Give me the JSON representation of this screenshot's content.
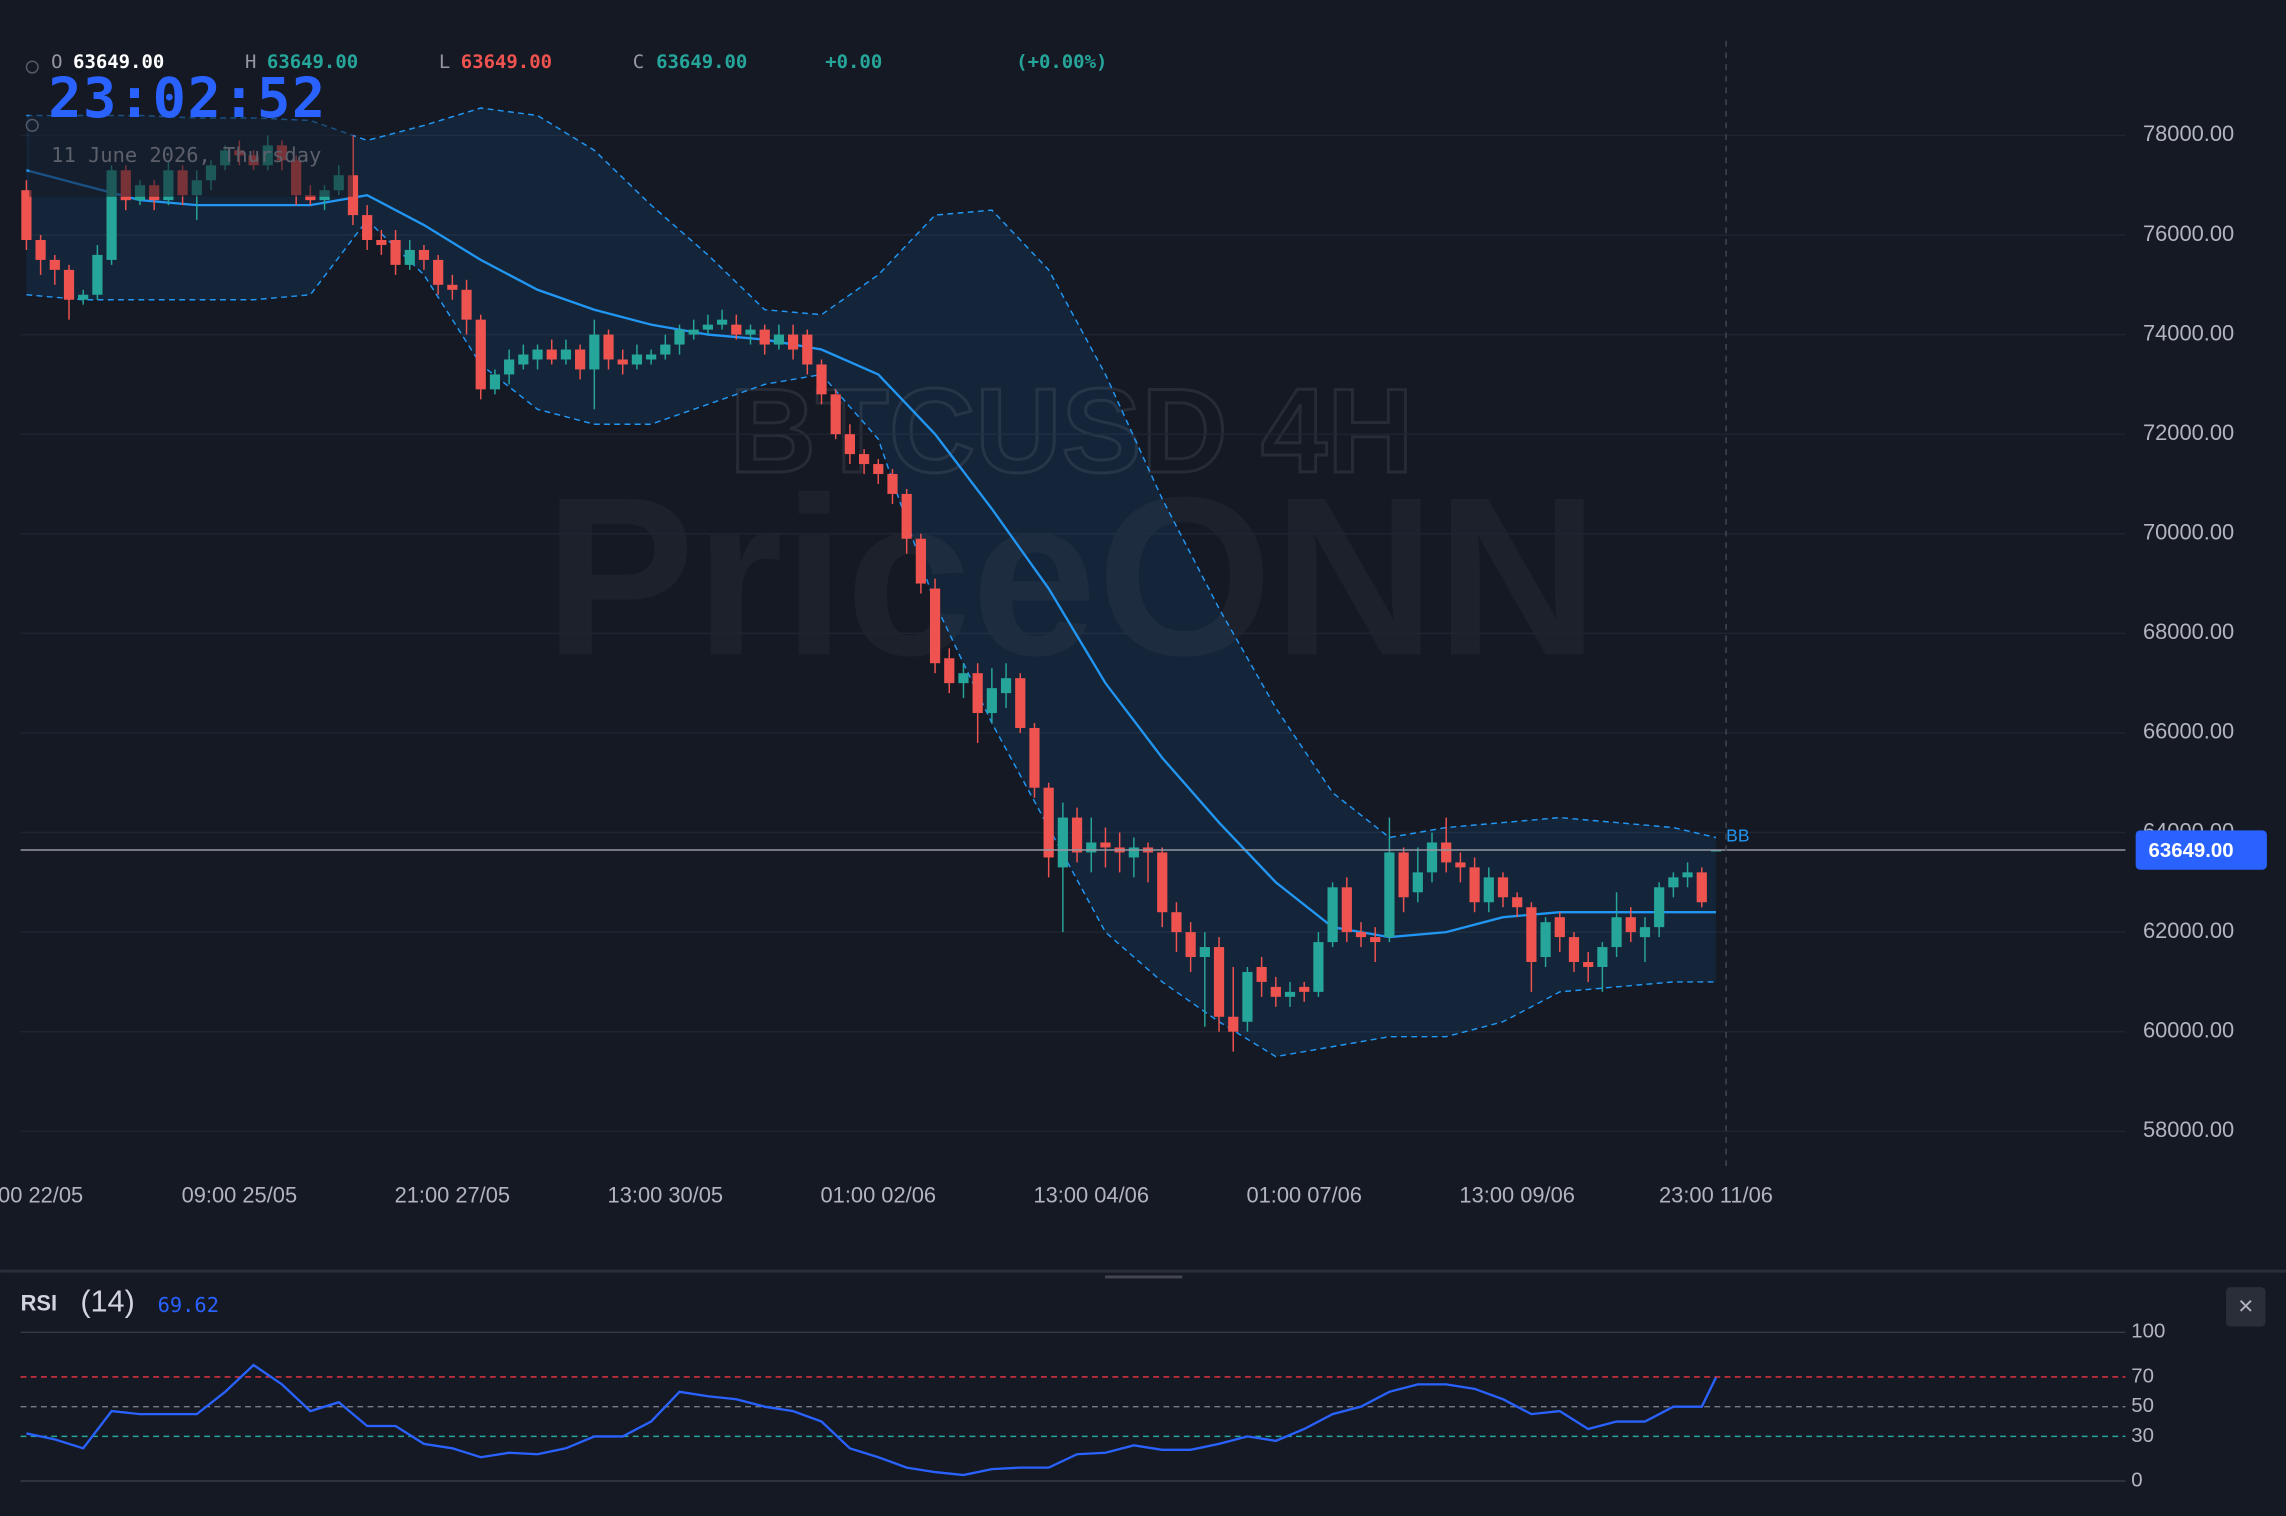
{
  "header": {
    "open_label": "O",
    "open": "63649.00",
    "high_label": "H",
    "high": "63649.00",
    "low_label": "L",
    "low": "63649.00",
    "close_label": "C",
    "close": "63649.00",
    "change": "+0.00",
    "change_pct": "(+0.00%)"
  },
  "clock": {
    "time": "23:02:52",
    "date": "11 June 2026, Thursday"
  },
  "watermark": {
    "symbol": "BTCUSD 4H",
    "brand": "PriceONN"
  },
  "close_button": "×",
  "chart_data": [
    {
      "type": "candlestick",
      "up_color": "#26a69a",
      "down_color": "#ef5350",
      "open": [
        76900,
        75900,
        75500,
        75300,
        74700,
        74800,
        75500,
        77300,
        76700,
        77000,
        76700,
        77300,
        76800,
        77100,
        77400,
        77700,
        77600,
        77400,
        77800,
        77500,
        76800,
        76700,
        76900,
        77200,
        76400,
        75900,
        75900,
        75400,
        75700,
        75500,
        75000,
        74900,
        74300,
        72900,
        73200,
        73400,
        73500,
        73700,
        73500,
        73700,
        73300,
        74000,
        73500,
        73400,
        73500,
        73600,
        73800,
        74000,
        74100,
        74200,
        74200,
        74000,
        74100,
        73800,
        74000,
        74000,
        73400,
        72800,
        72000,
        71600,
        71400,
        71200,
        70800,
        69900,
        68900,
        67500,
        67000,
        67200,
        66400,
        66800,
        67100,
        66100,
        64900,
        63300,
        64300,
        63600,
        63800,
        63700,
        63500,
        63700,
        63600,
        62400,
        62000,
        61500,
        61700,
        60300,
        60200,
        61300,
        60900,
        60700,
        60900,
        60800,
        61800,
        62900,
        62000,
        61900,
        61900,
        63600,
        62800,
        63200,
        63800,
        63400,
        63300,
        62600,
        63100,
        62700,
        62500,
        61500,
        62300,
        61900,
        61400,
        61300,
        61700,
        62300,
        61900,
        62100,
        62900,
        63100,
        63200,
        63649
      ],
      "high": [
        77100,
        76000,
        75600,
        75400,
        74900,
        75800,
        77400,
        77400,
        77100,
        77100,
        77500,
        77400,
        77300,
        77500,
        77800,
        77900,
        77700,
        78000,
        77900,
        77600,
        77000,
        77000,
        77400,
        78000,
        76600,
        76100,
        76100,
        75900,
        75800,
        75600,
        75200,
        75100,
        74400,
        73300,
        73700,
        73800,
        73800,
        73900,
        73900,
        73800,
        74300,
        74100,
        73700,
        73800,
        73700,
        74000,
        74200,
        74300,
        74400,
        74500,
        74400,
        74200,
        74200,
        74200,
        74200,
        74100,
        73500,
        72900,
        72200,
        71700,
        71500,
        71300,
        70900,
        70000,
        69100,
        67700,
        67400,
        67400,
        67300,
        67400,
        67200,
        66200,
        65000,
        64600,
        64500,
        64300,
        64100,
        64000,
        63900,
        63800,
        63700,
        62600,
        62200,
        62000,
        61900,
        61300,
        61300,
        61500,
        61100,
        61000,
        61000,
        62000,
        63000,
        63100,
        62200,
        62100,
        64300,
        63700,
        63700,
        64000,
        64300,
        63600,
        63500,
        63300,
        63200,
        62800,
        62600,
        62300,
        62400,
        62000,
        61600,
        61800,
        62800,
        62500,
        62300,
        63000,
        63200,
        63400,
        63300,
        63649
      ],
      "low": [
        75700,
        75200,
        75000,
        74300,
        74600,
        74700,
        75400,
        76500,
        76600,
        76500,
        76600,
        76600,
        76300,
        76900,
        77300,
        77400,
        77300,
        77300,
        77300,
        76600,
        76600,
        76500,
        76800,
        76200,
        75700,
        75600,
        75200,
        75300,
        75300,
        74800,
        74700,
        74000,
        72700,
        72800,
        73000,
        73300,
        73300,
        73400,
        73400,
        73100,
        72500,
        73300,
        73200,
        73300,
        73400,
        73500,
        73600,
        73900,
        74000,
        74100,
        73900,
        73800,
        73600,
        73700,
        73500,
        73200,
        72600,
        71900,
        71400,
        71200,
        71000,
        70600,
        69600,
        68800,
        67200,
        66800,
        66700,
        65800,
        66200,
        66500,
        66000,
        64700,
        63100,
        62000,
        63400,
        63200,
        63300,
        63200,
        63100,
        63000,
        62100,
        61600,
        61200,
        60100,
        60000,
        59600,
        60000,
        60700,
        60500,
        60500,
        60600,
        60700,
        61700,
        61800,
        61700,
        61400,
        61800,
        62400,
        62600,
        63000,
        63200,
        63000,
        62400,
        62400,
        62500,
        62300,
        60800,
        61300,
        61600,
        61200,
        61000,
        60800,
        61500,
        61800,
        61400,
        61900,
        62700,
        62900,
        62500,
        63649
      ],
      "close": [
        75900,
        75500,
        75300,
        74700,
        74800,
        75600,
        77300,
        76700,
        77000,
        76700,
        77300,
        76800,
        77100,
        77400,
        77700,
        77600,
        77400,
        77800,
        77500,
        76800,
        76700,
        76900,
        77200,
        76400,
        75900,
        75800,
        75400,
        75700,
        75500,
        75000,
        74900,
        74300,
        72900,
        73200,
        73500,
        73600,
        73700,
        73500,
        73700,
        73300,
        74000,
        73500,
        73400,
        73600,
        73600,
        73800,
        74100,
        74100,
        74200,
        74300,
        74000,
        74100,
        73800,
        74000,
        73700,
        73400,
        72800,
        72000,
        71600,
        71400,
        71200,
        70800,
        69900,
        69000,
        67400,
        67000,
        67200,
        66400,
        66900,
        67100,
        66100,
        64900,
        63500,
        64300,
        63600,
        63800,
        63700,
        63600,
        63700,
        63600,
        62400,
        62000,
        61500,
        61700,
        60300,
        60000,
        61200,
        61000,
        60700,
        60800,
        60800,
        61800,
        62900,
        62000,
        61900,
        61800,
        63600,
        62700,
        63200,
        63800,
        63400,
        63300,
        62600,
        63100,
        62700,
        62500,
        61400,
        62200,
        61900,
        61400,
        61300,
        61700,
        62300,
        62000,
        62100,
        62900,
        63100,
        63200,
        62600,
        63649
      ],
      "bollinger": {
        "label": "BB",
        "color": "#2196f3",
        "x": [
          0,
          4,
          8,
          12,
          16,
          20,
          24,
          28,
          32,
          36,
          40,
          44,
          48,
          52,
          56,
          60,
          64,
          68,
          72,
          76,
          80,
          84,
          88,
          92,
          96,
          100,
          104,
          108,
          112,
          116,
          119
        ],
        "upper": [
          78400,
          78400,
          78400,
          78350,
          78350,
          78300,
          77900,
          78200,
          78550,
          78400,
          77700,
          76600,
          75600,
          74500,
          74400,
          75200,
          76400,
          76500,
          75300,
          73200,
          70700,
          68500,
          66500,
          64800,
          63900,
          64100,
          64200,
          64300,
          64200,
          64100,
          63900
        ],
        "middle": [
          77300,
          77000,
          76700,
          76600,
          76600,
          76600,
          76800,
          76200,
          75500,
          74900,
          74500,
          74200,
          74000,
          73900,
          73700,
          73200,
          72000,
          70500,
          68900,
          67000,
          65500,
          64200,
          63000,
          62100,
          61900,
          62000,
          62300,
          62400,
          62400,
          62400,
          62400
        ],
        "lower": [
          74800,
          74700,
          74700,
          74700,
          74700,
          74800,
          76300,
          75200,
          73400,
          72500,
          72200,
          72200,
          72600,
          73000,
          73200,
          71900,
          68600,
          66200,
          64100,
          62000,
          61000,
          60200,
          59500,
          59700,
          59900,
          59900,
          60200,
          60800,
          60900,
          61000,
          61000
        ]
      },
      "last_price": {
        "value": 63649,
        "label": "63649.00"
      },
      "ylim": [
        57300,
        79900
      ],
      "yticks": [
        {
          "value": 58000,
          "label": "58000.00"
        },
        {
          "value": 60000,
          "label": "60000.00"
        },
        {
          "value": 62000,
          "label": "62000.00"
        },
        {
          "value": 64000,
          "label": "64000.00"
        },
        {
          "value": 66000,
          "label": "66000.00"
        },
        {
          "value": 68000,
          "label": "68000.00"
        },
        {
          "value": 70000,
          "label": "70000.00"
        },
        {
          "value": 72000,
          "label": "72000.00"
        },
        {
          "value": 74000,
          "label": "74000.00"
        },
        {
          "value": 76000,
          "label": "76000.00"
        },
        {
          "value": 78000,
          "label": "78000.00"
        }
      ],
      "xticks": [
        {
          "value": 1,
          "label": "00 22/05"
        },
        {
          "value": 15,
          "label": "09:00 25/05"
        },
        {
          "value": 30,
          "label": "21:00 27/05"
        },
        {
          "value": 45,
          "label": "13:00 30/05"
        },
        {
          "value": 60,
          "label": "01:00 02/06"
        },
        {
          "value": 75,
          "label": "13:00 04/06"
        },
        {
          "value": 90,
          "label": "01:00 07/06"
        },
        {
          "value": 105,
          "label": "13:00 09/06"
        },
        {
          "value": 119,
          "label": "23:00 11/06"
        }
      ],
      "grid": true
    },
    {
      "type": "line",
      "title": "RSI",
      "period_label": "(14)",
      "value_label": "69.62",
      "color": "#2962ff",
      "x": [
        0,
        2,
        4,
        6,
        8,
        10,
        12,
        14,
        16,
        18,
        20,
        22,
        24,
        26,
        28,
        30,
        32,
        34,
        36,
        38,
        40,
        42,
        44,
        46,
        48,
        50,
        52,
        54,
        56,
        58,
        60,
        62,
        64,
        66,
        68,
        70,
        72,
        74,
        76,
        78,
        80,
        82,
        84,
        86,
        88,
        90,
        92,
        94,
        96,
        98,
        100,
        102,
        104,
        106,
        108,
        110,
        112,
        114,
        116,
        118,
        119
      ],
      "values": [
        32,
        28,
        22,
        47,
        45,
        45,
        45,
        60,
        78,
        65,
        47,
        53,
        37,
        37,
        25,
        22,
        16,
        19,
        18,
        22,
        30,
        30,
        40,
        60,
        57,
        55,
        50,
        47,
        40,
        22,
        16,
        9,
        6,
        4,
        8,
        9,
        9,
        18,
        19,
        24,
        21,
        21,
        25,
        30,
        27,
        35,
        45,
        50,
        60,
        65,
        65,
        62,
        55,
        45,
        47,
        35,
        40,
        40,
        50,
        50,
        69.62
      ],
      "ylim": [
        0,
        100
      ],
      "yticks": [
        0,
        30,
        50,
        70,
        100
      ],
      "level_colors": [
        "#363a45",
        "#26a69a",
        "#787b86",
        "#f23645",
        "#363a45"
      ]
    }
  ]
}
